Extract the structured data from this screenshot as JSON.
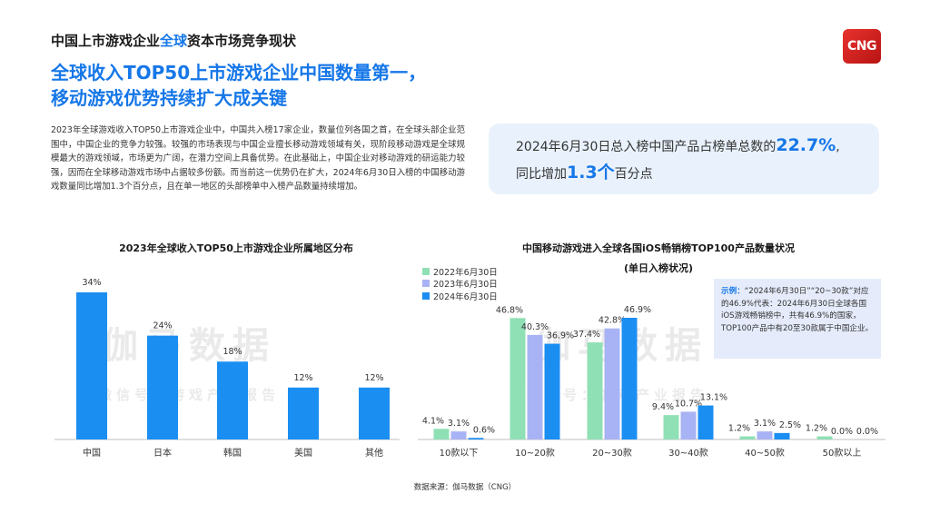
{
  "header": {
    "title_part1": "中国上市游戏企业",
    "title_highlight": "全球",
    "title_part2": "资本市场竞争现状",
    "logo": "CNG"
  },
  "headline": {
    "line1": "全球收入TOP50上市游戏企业中国数量第一，",
    "line2": "移动游戏优势持续扩大成关键"
  },
  "body_text": "2023年全球游戏收入TOP50上市游戏企业中，中国共入榜17家企业，数量位列各国之首，在全球头部企业范围中，中国企业的竞争力较强。较强的市场表现与中国企业擅长移动游戏领域有关，现阶段移动游戏是全球规模最大的游戏领域，市场更为广阔，在潜力空间上具备优势。在此基础上，中国企业对移动游戏的研运能力较强，因而在全球移动游戏市场中占据较多份额。而当前这一优势仍在扩大，2024年6月30日入榜的中国移动游戏数量同比增加1.3个百分点，且在单一地区的头部榜单中入榜产品数量持续增加。",
  "highlight": {
    "prefix": "2024年6月30日总入榜中国产品占榜单总数的",
    "value1": "22.7%",
    "suffix1": ",",
    "line2_prefix": "同比增加",
    "value2": "1.3个",
    "line2_suffix": "百分点"
  },
  "example": {
    "label": "示例：",
    "text": "“2024年6月30日”“20~30款”对应的46.9%代表：2024年6月30日全球各国iOS游戏畅销榜中，共有46.9%的国家，TOP100产品中有20至30款属于中国企业。"
  },
  "watermark": {
    "main": "伽马数据",
    "sub": "微信号：游戏产业报告"
  },
  "source": "数据来源：伽马数据（CNG）",
  "colors": {
    "accent": "#1677e8",
    "s2022": "#8fe0b5",
    "s2023": "#a8b3f5",
    "s2024": "#1b8ef2"
  },
  "chart_data": [
    {
      "type": "bar",
      "title": "2023年全球收入TOP50上市游戏企业所属地区分布",
      "categories": [
        "中国",
        "日本",
        "韩国",
        "美国",
        "其他"
      ],
      "values": [
        34,
        24,
        18,
        12,
        12
      ],
      "value_labels": [
        "34%",
        "24%",
        "18%",
        "12%",
        "12%"
      ],
      "ylim": [
        0,
        34
      ],
      "grid": false
    },
    {
      "type": "bar",
      "title": "中国移动游戏进入全球各国iOS畅销榜TOP100产品数量状况",
      "subtitle": "(单日入榜状况)",
      "categories": [
        "10款以下",
        "10~20款",
        "20~30款",
        "30~40款",
        "40~50款",
        "50款以上"
      ],
      "legend_position": "top-left",
      "ylim": [
        0,
        46.9
      ],
      "grid": false,
      "series": [
        {
          "name": "2022年6月30日",
          "values": [
            4.1,
            46.8,
            37.4,
            9.4,
            1.2,
            1.2
          ],
          "labels": [
            "4.1%",
            "46.8%",
            "37.4%",
            "9.4%",
            "1.2%",
            "1.2%"
          ]
        },
        {
          "name": "2023年6月30日",
          "values": [
            3.1,
            40.3,
            42.8,
            10.7,
            3.1,
            0.0
          ],
          "labels": [
            "3.1%",
            "40.3%",
            "42.8%",
            "10.7%",
            "3.1%",
            "0.0%"
          ]
        },
        {
          "name": "2024年6月30日",
          "values": [
            0.6,
            36.9,
            46.9,
            13.1,
            2.5,
            0.0
          ],
          "labels": [
            "0.6%",
            "36.9%",
            "46.9%",
            "13.1%",
            "2.5%",
            "0.0%"
          ]
        }
      ]
    }
  ]
}
